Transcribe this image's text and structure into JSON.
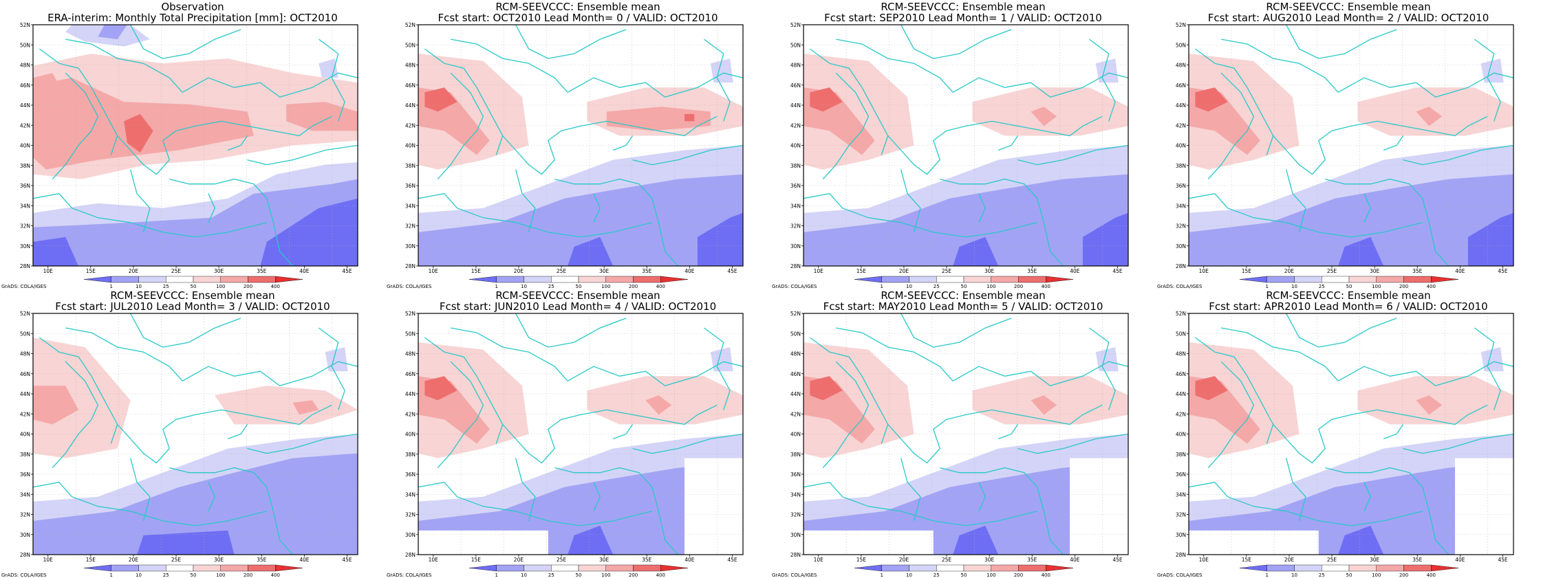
{
  "colors": {
    "land_outline": "#28c8c8",
    "scale": [
      "#6e6ef5",
      "#a3a3f5",
      "#d4d4f8",
      "#ffffff",
      "#f8d4d4",
      "#f5a8a8",
      "#ee6e6e",
      "#e83030"
    ]
  },
  "colorbar": {
    "labels": [
      "1",
      "10",
      "25",
      "50",
      "100",
      "200",
      "400"
    ]
  },
  "axes": {
    "lat_labels": [
      "52N",
      "50N",
      "48N",
      "46N",
      "44N",
      "42N",
      "40N",
      "38N",
      "36N",
      "34N",
      "32N",
      "30N",
      "28N"
    ],
    "lon_labels": [
      "10E",
      "15E",
      "20E",
      "25E",
      "30E",
      "35E",
      "40E",
      "45E"
    ]
  },
  "credit": "GrADS: COLA/IGES",
  "panels": [
    {
      "line1": "Observation",
      "line2": "ERA-interim:  Monthly Total Precipitation [mm]: OCT2010"
    },
    {
      "line1": "RCM-SEEVCCC: Ensemble mean",
      "line2": "Fcst start: OCT2010  Lead Month= 0 / VALID: OCT2010"
    },
    {
      "line1": "RCM-SEEVCCC: Ensemble mean",
      "line2": "Fcst start: SEP2010  Lead Month= 1 / VALID: OCT2010"
    },
    {
      "line1": "RCM-SEEVCCC: Ensemble mean",
      "line2": "Fcst start: AUG2010  Lead Month= 2 / VALID: OCT2010"
    },
    {
      "line1": "RCM-SEEVCCC: Ensemble mean",
      "line2": "Fcst start: JUL2010  Lead Month= 3 / VALID: OCT2010"
    },
    {
      "line1": "RCM-SEEVCCC: Ensemble mean",
      "line2": "Fcst start: JUN2010  Lead Month= 4 / VALID: OCT2010"
    },
    {
      "line1": "RCM-SEEVCCC: Ensemble mean",
      "line2": "Fcst start: MAY2010  Lead Month= 5 / VALID: OCT2010"
    },
    {
      "line1": "RCM-SEEVCCC: Ensemble mean",
      "line2": "Fcst start: APR2010  Lead Month= 6 / VALID: OCT2010"
    }
  ]
}
